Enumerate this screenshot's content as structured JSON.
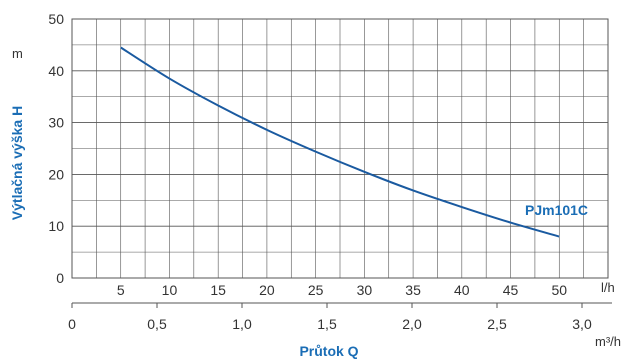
{
  "chart_data": {
    "type": "line",
    "ylabel": "Výtlačná výška H",
    "y_unit": "m",
    "xlabel": "Průtok Q",
    "x_unit_primary": "l/h",
    "x_unit_secondary": "m³/h",
    "ylim": [
      0,
      50
    ],
    "xlim": [
      0,
      55
    ],
    "y_ticks": [
      "0",
      "10",
      "20",
      "30",
      "40",
      "50"
    ],
    "x_ticks_primary": [
      "5",
      "10",
      "15",
      "20",
      "25",
      "30",
      "35",
      "40",
      "45",
      "50"
    ],
    "x_ticks_secondary": [
      "0",
      "0,5",
      "1,0",
      "1,5",
      "2,0",
      "2,5",
      "3,0"
    ],
    "grid": true,
    "colors": {
      "line": "#1a5aa0",
      "label": "#1a6db5",
      "grid": "#555555"
    },
    "series": [
      {
        "name": "PJm101C",
        "x": [
          5,
          10,
          15,
          20,
          25,
          30,
          35,
          40,
          45,
          50
        ],
        "y": [
          44.5,
          38.5,
          33.3,
          28.6,
          24.4,
          20.5,
          16.9,
          13.7,
          10.7,
          8
        ]
      }
    ]
  }
}
